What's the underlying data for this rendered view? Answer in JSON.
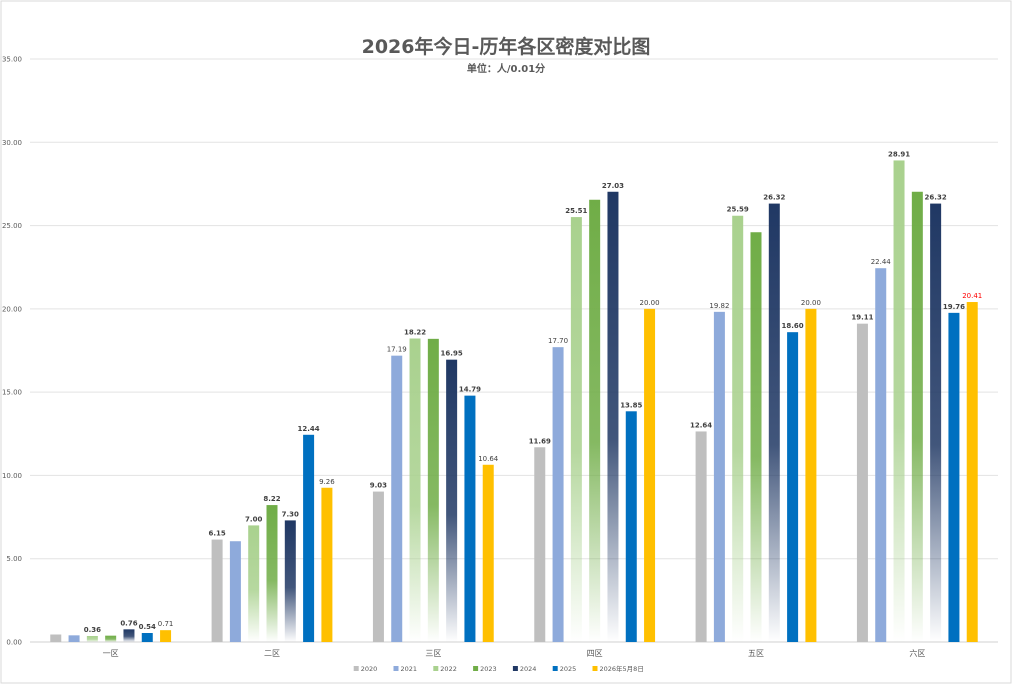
{
  "chart_data": {
    "type": "bar",
    "title": "2026年今日-历年各区密度对比图",
    "subtitle": "单位：人/0.01分",
    "categories": [
      "一区",
      "二区",
      "三区",
      "四区",
      "五区",
      "六区"
    ],
    "ylim": [
      0,
      35
    ],
    "yticks": [
      "0.00",
      "5.00",
      "10.00",
      "15.00",
      "20.00",
      "25.00",
      "30.00",
      "35.00"
    ],
    "grid": true,
    "legend_position": "bottom",
    "series": [
      {
        "name": "2020",
        "color": "#BFBFBF",
        "style": "solid",
        "values": [
          0.45,
          6.15,
          9.03,
          11.69,
          12.64,
          19.11
        ],
        "labels": [
          "",
          "6.15",
          "9.03",
          "11.69",
          "12.64",
          "19.11"
        ]
      },
      {
        "name": "2021",
        "color": "#8EAADB",
        "style": "solid",
        "values": [
          0.4,
          6.05,
          17.19,
          17.7,
          19.82,
          22.44
        ],
        "labels": [
          "",
          "",
          "17.19",
          "17.70",
          "19.82",
          "22.44"
        ]
      },
      {
        "name": "2022",
        "color": "#A9D18E",
        "style": "gradient",
        "values": [
          0.36,
          7.0,
          18.22,
          25.51,
          25.59,
          28.91
        ],
        "labels": [
          "0.36",
          "7.00",
          "18.22",
          "25.51",
          "25.59",
          "28.91"
        ]
      },
      {
        "name": "2023",
        "color": "#70AD47",
        "style": "gradient",
        "values": [
          0.38,
          8.22,
          18.2,
          26.55,
          24.6,
          27.03
        ],
        "labels": [
          "",
          "8.22",
          "",
          "",
          "",
          ""
        ]
      },
      {
        "name": "2024",
        "color": "#203864",
        "style": "gradient",
        "values": [
          0.76,
          7.3,
          16.95,
          27.03,
          26.32,
          26.32
        ],
        "labels": [
          "0.76",
          "7.30",
          "16.95",
          "27.03",
          "26.32",
          "26.32"
        ]
      },
      {
        "name": "2025",
        "color": "#0070C0",
        "style": "solid",
        "values": [
          0.54,
          12.44,
          14.79,
          13.85,
          18.6,
          19.76
        ],
        "labels": [
          "0.54",
          "12.44",
          "14.79",
          "13.85",
          "18.60",
          "19.76"
        ]
      },
      {
        "name": "2026年5月8日",
        "color": "#FFC000",
        "style": "solid",
        "values": [
          0.71,
          9.26,
          10.64,
          20.0,
          20.0,
          20.41
        ],
        "labels": [
          "0.71",
          "9.26",
          "10.64",
          "20.00",
          "20.00",
          "20.41"
        ]
      }
    ],
    "label_colors": {
      "default": "#404040",
      "highlight": "#FF0000"
    }
  }
}
